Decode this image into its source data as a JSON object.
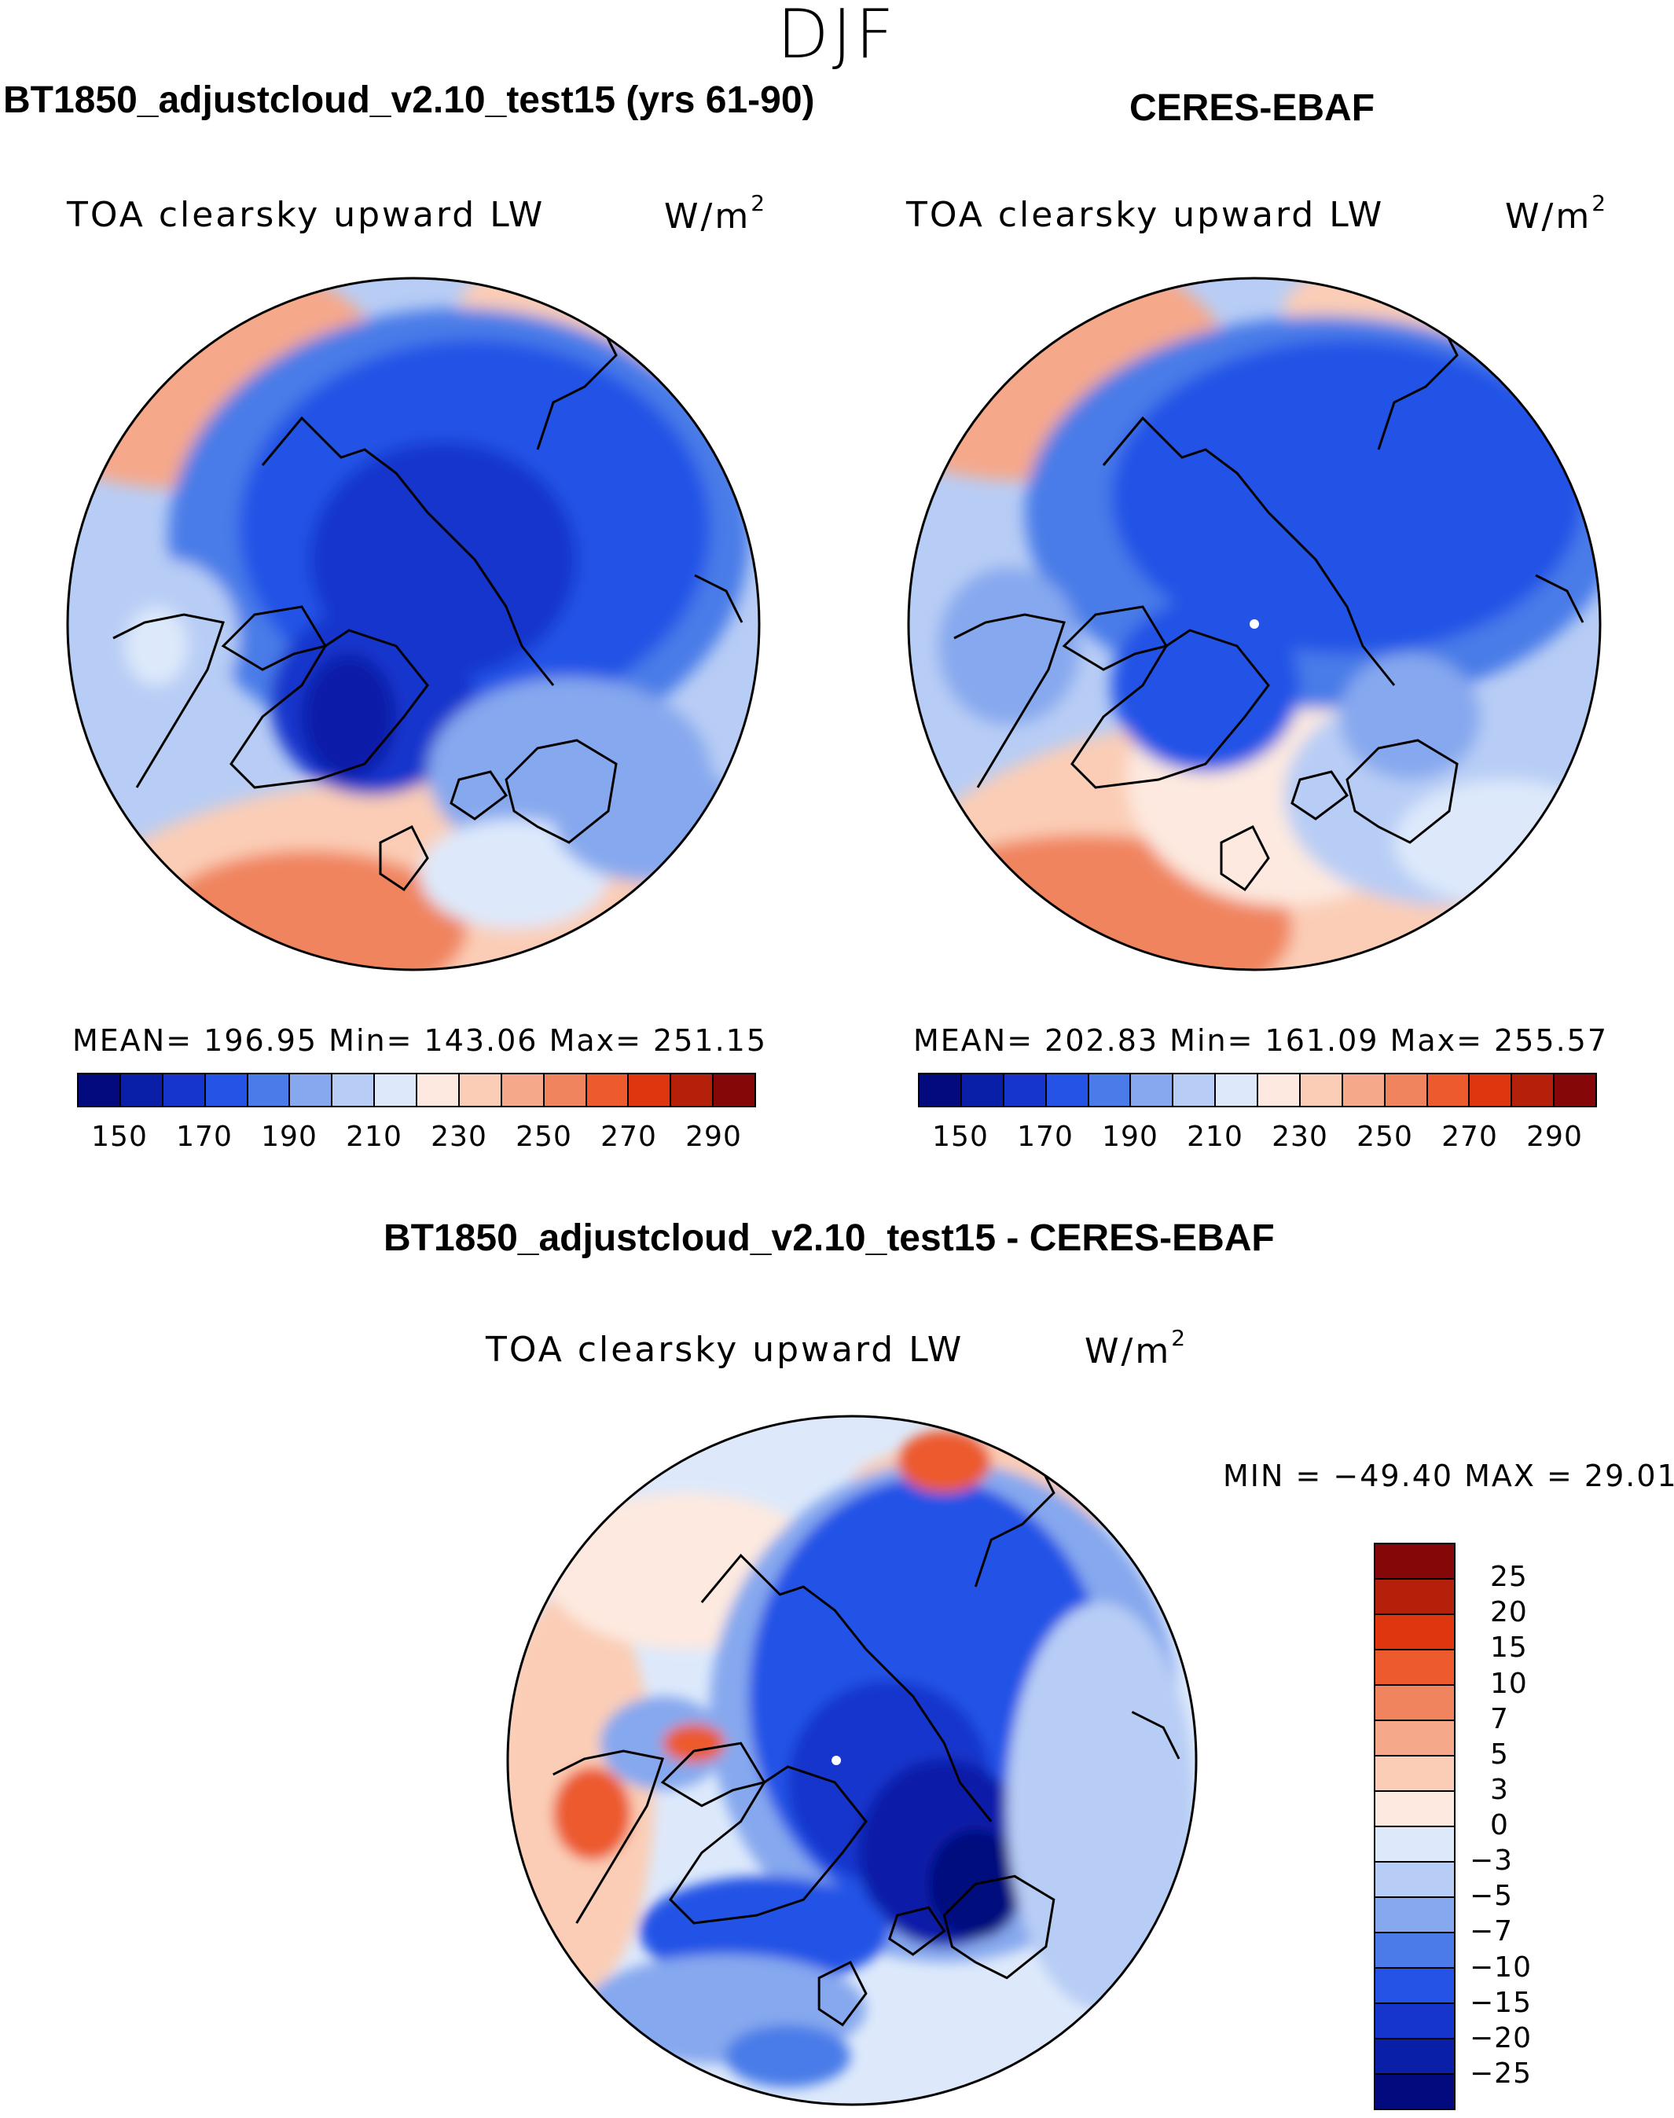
{
  "season": "DJF",
  "panels": {
    "model": {
      "title": "BT1850_adjustcloud_v2.10_test15 (yrs 61-90)",
      "field": "TOA clearsky upward LW",
      "units": "W/m",
      "units_exp": "2",
      "stats": "MEAN= 196.95   Min= 143.06   Max= 251.15",
      "colorbar_labels": [
        "150",
        "170",
        "190",
        "210",
        "230",
        "250",
        "270",
        "290"
      ],
      "colors": [
        "#030a7d",
        "#0a1fa8",
        "#1535cc",
        "#2453e6",
        "#4a7be8",
        "#86a8ee",
        "#b8cdf5",
        "#dde9fb",
        "#fde9df",
        "#fbcdb6",
        "#f6a88a",
        "#f0845f",
        "#ec5a2d",
        "#e0360f",
        "#b5200b",
        "#860707"
      ]
    },
    "obs": {
      "title": "CERES-EBAF",
      "field": "TOA clearsky upward LW",
      "units": "W/m",
      "units_exp": "2",
      "stats": "MEAN= 202.83   Min= 161.09   Max= 255.57",
      "colorbar_labels": [
        "150",
        "170",
        "190",
        "210",
        "230",
        "250",
        "270",
        "290"
      ],
      "colors": [
        "#030a7d",
        "#0a1fa8",
        "#1535cc",
        "#2453e6",
        "#4a7be8",
        "#86a8ee",
        "#b8cdf5",
        "#dde9fb",
        "#fde9df",
        "#fbcdb6",
        "#f6a88a",
        "#f0845f",
        "#ec5a2d",
        "#e0360f",
        "#b5200b",
        "#860707"
      ]
    },
    "diff": {
      "title": "BT1850_adjustcloud_v2.10_test15 - CERES-EBAF",
      "field": "TOA clearsky upward LW",
      "units": "W/m",
      "units_exp": "2",
      "stats": "MIN = −49.40 MAX =   29.01",
      "colorbar_labels": [
        "25",
        "20",
        "15",
        "10",
        "7",
        "5",
        "3",
        "0",
        "−3",
        "−5",
        "−7",
        "−10",
        "−15",
        "−20",
        "−25"
      ],
      "colors": [
        "#860707",
        "#b5200b",
        "#e0360f",
        "#ec5a2d",
        "#f0845f",
        "#f6a88a",
        "#fbcdb6",
        "#fde9df",
        "#dde9fb",
        "#b8cdf5",
        "#86a8ee",
        "#4a7be8",
        "#2453e6",
        "#1535cc",
        "#0a1fa8",
        "#030a7d"
      ]
    }
  }
}
